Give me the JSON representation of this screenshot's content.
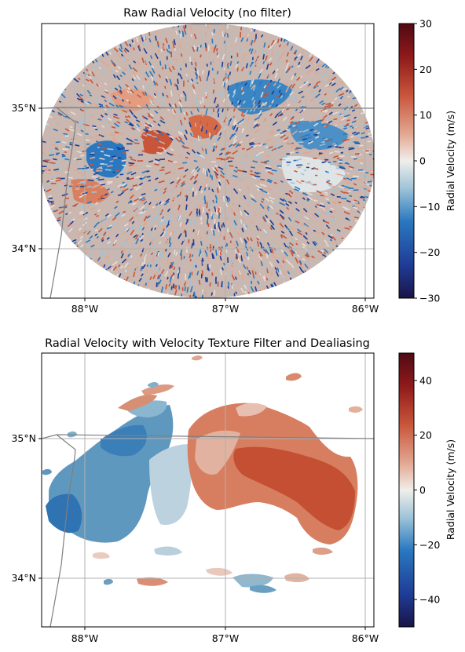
{
  "chart_data": [
    {
      "type": "heatmap",
      "title": "Raw Radial Velocity (no filter)",
      "x_tick_labels": [
        "88°W",
        "87°W",
        "86°W"
      ],
      "x_ticks": [
        -88,
        -87,
        -86
      ],
      "y_tick_labels": [
        "35°N",
        "34°N"
      ],
      "y_ticks": [
        35,
        34
      ],
      "xlim": [
        -88.32,
        -85.95
      ],
      "ylim": [
        33.65,
        35.61
      ],
      "colorbar": {
        "label": "Radial Velocity (m/s)",
        "range": [
          -30,
          30
        ],
        "tick_values": [
          -30,
          -20,
          -10,
          0,
          10,
          20,
          30
        ],
        "tick_labels": [
          "−30",
          "−20",
          "−10",
          "0",
          "10",
          "20",
          "30"
        ],
        "colormap": [
          "#1a1446",
          "#1f3c96",
          "#2a78c0",
          "#9ec4d8",
          "#f0eeea",
          "#e3a690",
          "#c8553a",
          "#8e1a1a",
          "#4f0a14"
        ]
      },
      "radar_center": [
        -87.07,
        34.63
      ],
      "radar_extent_deg": [
        1.19,
        0.97
      ],
      "notes_visible": "unfiltered velocity with heavy speckle noise"
    },
    {
      "type": "heatmap",
      "title": "Radial Velocity with Velocity Texture Filter and Dealiasing",
      "x_tick_labels": [
        "88°W",
        "87°W",
        "86°W"
      ],
      "x_ticks": [
        -88,
        -87,
        -86
      ],
      "y_tick_labels": [
        "35°N",
        "34°N"
      ],
      "y_ticks": [
        35,
        34
      ],
      "xlim": [
        -88.32,
        -85.95
      ],
      "ylim": [
        33.65,
        35.61
      ],
      "colorbar": {
        "label": "Radial Velocity (m/s)",
        "range": [
          -50,
          50
        ],
        "tick_values": [
          -40,
          -20,
          0,
          20,
          40
        ],
        "tick_labels": [
          "−40",
          "−20",
          "0",
          "20",
          "40"
        ],
        "colormap": [
          "#1a1446",
          "#1f3c96",
          "#2a78c0",
          "#9ec4d8",
          "#f0eeea",
          "#e3a690",
          "#c8553a",
          "#8e1a1a",
          "#4f0a14"
        ]
      }
    }
  ]
}
